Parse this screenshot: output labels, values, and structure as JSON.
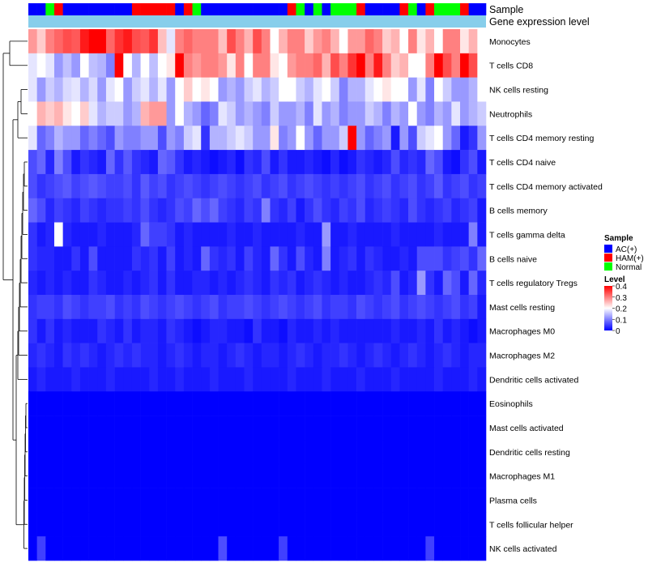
{
  "chart_data": {
    "type": "heatmap",
    "annotation_labels": {
      "sample": "Sample",
      "expression": "Gene expression level"
    },
    "rows": [
      "Monocytes",
      "T cells CD8",
      "NK cells resting",
      "Neutrophils",
      "T cells CD4 memory resting",
      "T cells CD4 naive",
      "T cells CD4 memory activated",
      "B cells memory",
      "T cells gamma delta",
      "B cells naive",
      "T cells regulatory  Tregs",
      "Mast cells resting",
      "Macrophages M0",
      "Macrophages M2",
      "Dendritic cells activated",
      "Eosinophils",
      "Mast cells activated",
      "Dendritic cells resting",
      "Macrophages M1",
      "Plasma cells",
      "T cells follicular helper",
      "NK cells activated"
    ],
    "sample_groups": [
      "AC(+)",
      "AC(+)",
      "Normal",
      "HAM(+)",
      "AC(+)",
      "AC(+)",
      "AC(+)",
      "AC(+)",
      "AC(+)",
      "AC(+)",
      "AC(+)",
      "AC(+)",
      "HAM(+)",
      "HAM(+)",
      "HAM(+)",
      "HAM(+)",
      "HAM(+)",
      "AC(+)",
      "HAM(+)",
      "Normal",
      "AC(+)",
      "AC(+)",
      "AC(+)",
      "AC(+)",
      "AC(+)",
      "AC(+)",
      "AC(+)",
      "AC(+)",
      "AC(+)",
      "AC(+)",
      "HAM(+)",
      "Normal",
      "AC(+)",
      "Normal",
      "AC(+)",
      "Normal",
      "Normal",
      "Normal",
      "HAM(+)",
      "AC(+)",
      "AC(+)",
      "AC(+)",
      "AC(+)",
      "HAM(+)",
      "Normal",
      "AC(+)",
      "HAM(+)",
      "Normal",
      "Normal",
      "Normal",
      "HAM(+)",
      "AC(+)",
      "AC(+)"
    ],
    "values": [
      [
        0.28,
        0.24,
        0.3,
        0.32,
        0.34,
        0.33,
        0.38,
        0.4,
        0.4,
        0.32,
        0.36,
        0.38,
        0.34,
        0.33,
        0.36,
        0.25,
        0.18,
        0.3,
        0.32,
        0.3,
        0.3,
        0.3,
        0.25,
        0.34,
        0.3,
        0.26,
        0.34,
        0.3,
        0.2,
        0.26,
        0.3,
        0.3,
        0.24,
        0.28,
        0.3,
        0.26,
        0.2,
        0.28,
        0.28,
        0.32,
        0.3,
        0.24,
        0.26,
        0.2,
        0.3,
        0.22,
        0.26,
        0.2,
        0.3,
        0.3,
        0.22,
        0.26,
        0.2
      ],
      [
        0.18,
        0.2,
        0.18,
        0.12,
        0.15,
        0.12,
        0.2,
        0.15,
        0.14,
        0.1,
        0.4,
        0.2,
        0.14,
        0.2,
        0.15,
        0.2,
        0.22,
        0.4,
        0.3,
        0.28,
        0.3,
        0.3,
        0.28,
        0.22,
        0.3,
        0.2,
        0.3,
        0.3,
        0.22,
        0.2,
        0.28,
        0.3,
        0.3,
        0.32,
        0.26,
        0.34,
        0.3,
        0.36,
        0.4,
        0.3,
        0.38,
        0.3,
        0.24,
        0.26,
        0.2,
        0.2,
        0.3,
        0.4,
        0.34,
        0.3,
        0.4,
        0.34,
        0.2
      ],
      [
        0.18,
        0.12,
        0.16,
        0.14,
        0.17,
        0.18,
        0.14,
        0.17,
        0.12,
        0.18,
        0.2,
        0.12,
        0.16,
        0.18,
        0.14,
        0.18,
        0.12,
        0.2,
        0.24,
        0.2,
        0.22,
        0.2,
        0.12,
        0.14,
        0.12,
        0.16,
        0.18,
        0.14,
        0.16,
        0.2,
        0.2,
        0.16,
        0.14,
        0.18,
        0.2,
        0.16,
        0.1,
        0.14,
        0.14,
        0.18,
        0.2,
        0.22,
        0.2,
        0.2,
        0.12,
        0.18,
        0.1,
        0.2,
        0.16,
        0.12,
        0.12,
        0.14,
        0.2
      ],
      [
        0.2,
        0.26,
        0.24,
        0.26,
        0.22,
        0.2,
        0.24,
        0.18,
        0.14,
        0.16,
        0.16,
        0.12,
        0.14,
        0.26,
        0.28,
        0.28,
        0.12,
        0.2,
        0.14,
        0.12,
        0.08,
        0.1,
        0.18,
        0.16,
        0.12,
        0.14,
        0.12,
        0.1,
        0.16,
        0.12,
        0.12,
        0.14,
        0.1,
        0.18,
        0.12,
        0.14,
        0.1,
        0.12,
        0.12,
        0.16,
        0.14,
        0.1,
        0.14,
        0.12,
        0.2,
        0.12,
        0.1,
        0.14,
        0.12,
        0.18,
        0.12,
        0.14,
        0.16
      ],
      [
        0.18,
        0.08,
        0.1,
        0.14,
        0.12,
        0.12,
        0.08,
        0.1,
        0.08,
        0.06,
        0.12,
        0.1,
        0.1,
        0.12,
        0.12,
        0.06,
        0.12,
        0.1,
        0.16,
        0.18,
        0.04,
        0.14,
        0.14,
        0.16,
        0.18,
        0.16,
        0.12,
        0.12,
        0.22,
        0.1,
        0.12,
        0.2,
        0.12,
        0.08,
        0.12,
        0.12,
        0.16,
        0.4,
        0.12,
        0.08,
        0.1,
        0.12,
        0.02,
        0.12,
        0.06,
        0.16,
        0.18,
        0.2,
        0.12,
        0.08,
        0.02,
        0.04,
        0.12
      ],
      [
        0.06,
        0.08,
        0.03,
        0.1,
        0.06,
        0.02,
        0.04,
        0.03,
        0.02,
        0.08,
        0.04,
        0.07,
        0.04,
        0.03,
        0.02,
        0.08,
        0.07,
        0.04,
        0.02,
        0.03,
        0.02,
        0.01,
        0.02,
        0.03,
        0.01,
        0.04,
        0.03,
        0.06,
        0.02,
        0.04,
        0.02,
        0.02,
        0.03,
        0.02,
        0.01,
        0.03,
        0.01,
        0.02,
        0.04,
        0.03,
        0.02,
        0.03,
        0.06,
        0.03,
        0.04,
        0.03,
        0.08,
        0.06,
        0.02,
        0.01,
        0.04,
        0.06,
        0.02
      ],
      [
        0.06,
        0.04,
        0.05,
        0.06,
        0.07,
        0.05,
        0.06,
        0.07,
        0.06,
        0.05,
        0.05,
        0.06,
        0.04,
        0.07,
        0.05,
        0.06,
        0.04,
        0.05,
        0.06,
        0.05,
        0.04,
        0.05,
        0.06,
        0.05,
        0.04,
        0.05,
        0.06,
        0.04,
        0.05,
        0.06,
        0.04,
        0.05,
        0.06,
        0.05,
        0.04,
        0.05,
        0.04,
        0.05,
        0.06,
        0.04,
        0.05,
        0.06,
        0.04,
        0.05,
        0.06,
        0.04,
        0.05,
        0.07,
        0.04,
        0.05,
        0.06,
        0.04,
        0.05
      ],
      [
        0.08,
        0.06,
        0.03,
        0.05,
        0.04,
        0.03,
        0.05,
        0.04,
        0.03,
        0.04,
        0.04,
        0.05,
        0.04,
        0.06,
        0.04,
        0.03,
        0.04,
        0.06,
        0.05,
        0.08,
        0.06,
        0.08,
        0.05,
        0.04,
        0.03,
        0.05,
        0.04,
        0.1,
        0.04,
        0.03,
        0.05,
        0.02,
        0.04,
        0.06,
        0.04,
        0.03,
        0.05,
        0.04,
        0.06,
        0.03,
        0.04,
        0.05,
        0.04,
        0.03,
        0.06,
        0.04,
        0.03,
        0.04,
        0.05,
        0.03,
        0.04,
        0.05,
        0.02
      ],
      [
        0.04,
        0.02,
        0.03,
        0.2,
        0.03,
        0.02,
        0.02,
        0.02,
        0.03,
        0.02,
        0.02,
        0.02,
        0.03,
        0.08,
        0.05,
        0.05,
        0.04,
        0.02,
        0.03,
        0.02,
        0.02,
        0.02,
        0.02,
        0.03,
        0.02,
        0.02,
        0.03,
        0.02,
        0.02,
        0.02,
        0.02,
        0.03,
        0.02,
        0.02,
        0.12,
        0.02,
        0.02,
        0.03,
        0.02,
        0.02,
        0.02,
        0.02,
        0.03,
        0.02,
        0.02,
        0.02,
        0.02,
        0.03,
        0.02,
        0.02,
        0.02,
        0.1,
        0.02
      ],
      [
        0.04,
        0.03,
        0.03,
        0.02,
        0.02,
        0.04,
        0.02,
        0.06,
        0.02,
        0.02,
        0.02,
        0.02,
        0.04,
        0.03,
        0.04,
        0.02,
        0.05,
        0.02,
        0.03,
        0.02,
        0.08,
        0.04,
        0.03,
        0.04,
        0.02,
        0.05,
        0.03,
        0.02,
        0.08,
        0.04,
        0.02,
        0.06,
        0.03,
        0.02,
        0.1,
        0.02,
        0.03,
        0.04,
        0.02,
        0.04,
        0.03,
        0.02,
        0.02,
        0.03,
        0.02,
        0.06,
        0.06,
        0.06,
        0.04,
        0.05,
        0.06,
        0.04,
        0.08
      ],
      [
        0.03,
        0.02,
        0.03,
        0.02,
        0.03,
        0.02,
        0.02,
        0.04,
        0.03,
        0.02,
        0.02,
        0.03,
        0.02,
        0.03,
        0.04,
        0.02,
        0.04,
        0.02,
        0.02,
        0.03,
        0.03,
        0.02,
        0.03,
        0.02,
        0.03,
        0.04,
        0.03,
        0.02,
        0.04,
        0.03,
        0.04,
        0.02,
        0.03,
        0.04,
        0.03,
        0.02,
        0.03,
        0.02,
        0.02,
        0.03,
        0.04,
        0.03,
        0.06,
        0.02,
        0.03,
        0.12,
        0.04,
        0.02,
        0.08,
        0.06,
        0.02,
        0.08,
        0.03
      ],
      [
        0.04,
        0.05,
        0.05,
        0.04,
        0.06,
        0.05,
        0.04,
        0.05,
        0.05,
        0.06,
        0.04,
        0.05,
        0.04,
        0.06,
        0.05,
        0.04,
        0.05,
        0.06,
        0.05,
        0.04,
        0.05,
        0.06,
        0.04,
        0.05,
        0.05,
        0.06,
        0.05,
        0.04,
        0.05,
        0.06,
        0.05,
        0.04,
        0.05,
        0.06,
        0.04,
        0.05,
        0.05,
        0.04,
        0.06,
        0.05,
        0.04,
        0.05,
        0.06,
        0.04,
        0.05,
        0.06,
        0.05,
        0.04,
        0.05,
        0.06,
        0.04,
        0.05,
        0.02
      ],
      [
        0.04,
        0.02,
        0.04,
        0.02,
        0.03,
        0.02,
        0.02,
        0.02,
        0.04,
        0.03,
        0.02,
        0.04,
        0.02,
        0.03,
        0.03,
        0.02,
        0.04,
        0.03,
        0.02,
        0.01,
        0.02,
        0.03,
        0.03,
        0.02,
        0.02,
        0.01,
        0.04,
        0.02,
        0.02,
        0.01,
        0.03,
        0.02,
        0.02,
        0.03,
        0.02,
        0.03,
        0.02,
        0.02,
        0.02,
        0.02,
        0.02,
        0.02,
        0.03,
        0.02,
        0.02,
        0.03,
        0.02,
        0.04,
        0.02,
        0.03,
        0.02,
        0.01,
        0.02
      ],
      [
        0.03,
        0.04,
        0.03,
        0.02,
        0.04,
        0.03,
        0.04,
        0.03,
        0.02,
        0.03,
        0.04,
        0.03,
        0.04,
        0.03,
        0.03,
        0.02,
        0.03,
        0.04,
        0.03,
        0.02,
        0.03,
        0.03,
        0.02,
        0.03,
        0.04,
        0.03,
        0.02,
        0.03,
        0.03,
        0.02,
        0.03,
        0.04,
        0.03,
        0.02,
        0.03,
        0.03,
        0.04,
        0.03,
        0.02,
        0.03,
        0.04,
        0.03,
        0.02,
        0.03,
        0.04,
        0.03,
        0.02,
        0.03,
        0.04,
        0.03,
        0.02,
        0.03,
        0.03
      ],
      [
        0.02,
        0.03,
        0.02,
        0.02,
        0.02,
        0.03,
        0.02,
        0.02,
        0.02,
        0.03,
        0.02,
        0.02,
        0.02,
        0.02,
        0.03,
        0.02,
        0.02,
        0.03,
        0.02,
        0.02,
        0.02,
        0.03,
        0.02,
        0.02,
        0.02,
        0.03,
        0.02,
        0.02,
        0.02,
        0.02,
        0.03,
        0.02,
        0.02,
        0.02,
        0.03,
        0.02,
        0.02,
        0.02,
        0.03,
        0.02,
        0.02,
        0.02,
        0.03,
        0.02,
        0.02,
        0.02,
        0.02,
        0.03,
        0.02,
        0.02,
        0.02,
        0.03,
        0.02
      ],
      [
        0,
        0,
        0,
        0,
        0,
        0,
        0,
        0,
        0,
        0,
        0,
        0,
        0,
        0,
        0,
        0,
        0,
        0,
        0,
        0,
        0,
        0,
        0,
        0,
        0,
        0,
        0,
        0,
        0,
        0,
        0,
        0,
        0,
        0,
        0,
        0,
        0,
        0,
        0,
        0,
        0,
        0,
        0,
        0,
        0,
        0,
        0,
        0,
        0,
        0,
        0,
        0,
        0
      ],
      [
        0,
        0,
        0,
        0,
        0,
        0,
        0,
        0,
        0,
        0,
        0,
        0,
        0,
        0,
        0,
        0,
        0,
        0,
        0,
        0,
        0,
        0,
        0,
        0,
        0,
        0,
        0,
        0,
        0,
        0,
        0,
        0,
        0,
        0,
        0,
        0,
        0,
        0,
        0,
        0,
        0,
        0,
        0,
        0,
        0,
        0,
        0,
        0,
        0,
        0,
        0,
        0,
        0
      ],
      [
        0,
        0,
        0,
        0,
        0,
        0,
        0,
        0,
        0,
        0,
        0,
        0,
        0,
        0,
        0,
        0,
        0,
        0,
        0,
        0,
        0,
        0,
        0,
        0,
        0,
        0,
        0,
        0,
        0,
        0,
        0,
        0,
        0,
        0,
        0,
        0,
        0,
        0,
        0,
        0,
        0,
        0,
        0,
        0,
        0,
        0,
        0,
        0,
        0,
        0,
        0,
        0,
        0
      ],
      [
        0,
        0,
        0,
        0,
        0,
        0,
        0,
        0,
        0,
        0,
        0,
        0,
        0,
        0,
        0,
        0,
        0,
        0,
        0,
        0,
        0,
        0,
        0,
        0,
        0,
        0,
        0,
        0,
        0,
        0,
        0,
        0,
        0,
        0,
        0,
        0,
        0,
        0,
        0,
        0,
        0,
        0,
        0,
        0,
        0,
        0,
        0,
        0,
        0,
        0,
        0,
        0,
        0
      ],
      [
        0,
        0,
        0,
        0,
        0,
        0,
        0,
        0,
        0,
        0,
        0,
        0,
        0,
        0,
        0,
        0,
        0,
        0,
        0,
        0,
        0,
        0,
        0,
        0,
        0,
        0,
        0,
        0,
        0,
        0,
        0,
        0,
        0,
        0,
        0,
        0,
        0,
        0,
        0,
        0,
        0,
        0,
        0,
        0,
        0,
        0,
        0,
        0,
        0,
        0,
        0,
        0,
        0
      ],
      [
        0,
        0,
        0,
        0,
        0,
        0,
        0,
        0,
        0,
        0,
        0,
        0,
        0,
        0,
        0,
        0,
        0,
        0,
        0,
        0,
        0,
        0,
        0,
        0,
        0,
        0,
        0,
        0,
        0,
        0,
        0,
        0,
        0,
        0,
        0,
        0,
        0,
        0,
        0,
        0,
        0,
        0,
        0,
        0,
        0,
        0,
        0,
        0,
        0,
        0,
        0,
        0,
        0
      ],
      [
        0,
        0.05,
        0,
        0,
        0,
        0,
        0,
        0,
        0,
        0,
        0,
        0,
        0,
        0,
        0,
        0,
        0,
        0,
        0,
        0,
        0,
        0,
        0.06,
        0,
        0,
        0,
        0,
        0,
        0,
        0.05,
        0,
        0,
        0,
        0,
        0,
        0,
        0,
        0,
        0,
        0,
        0,
        0,
        0,
        0,
        0,
        0,
        0.05,
        0,
        0,
        0,
        0,
        0,
        0
      ]
    ],
    "scale": {
      "min": 0,
      "max": 0.4,
      "ticks": [
        0,
        0.1,
        0.2,
        0.3,
        0.4
      ]
    },
    "colors": {
      "low": "#0000ff",
      "mid": "#ffffff",
      "high": "#ff0000",
      "expression_band": "#87ceeb",
      "groups": {
        "AC(+)": "#0000ff",
        "HAM(+)": "#ff0000",
        "Normal": "#00ff00"
      }
    },
    "legend": {
      "sample_title": "Sample",
      "sample_items": [
        "AC(+)",
        "HAM(+)",
        "Normal"
      ],
      "level_title": "Level",
      "level_tick_labels": [
        "0.4",
        "0.3",
        "0.2",
        "0.1",
        "0"
      ]
    }
  }
}
